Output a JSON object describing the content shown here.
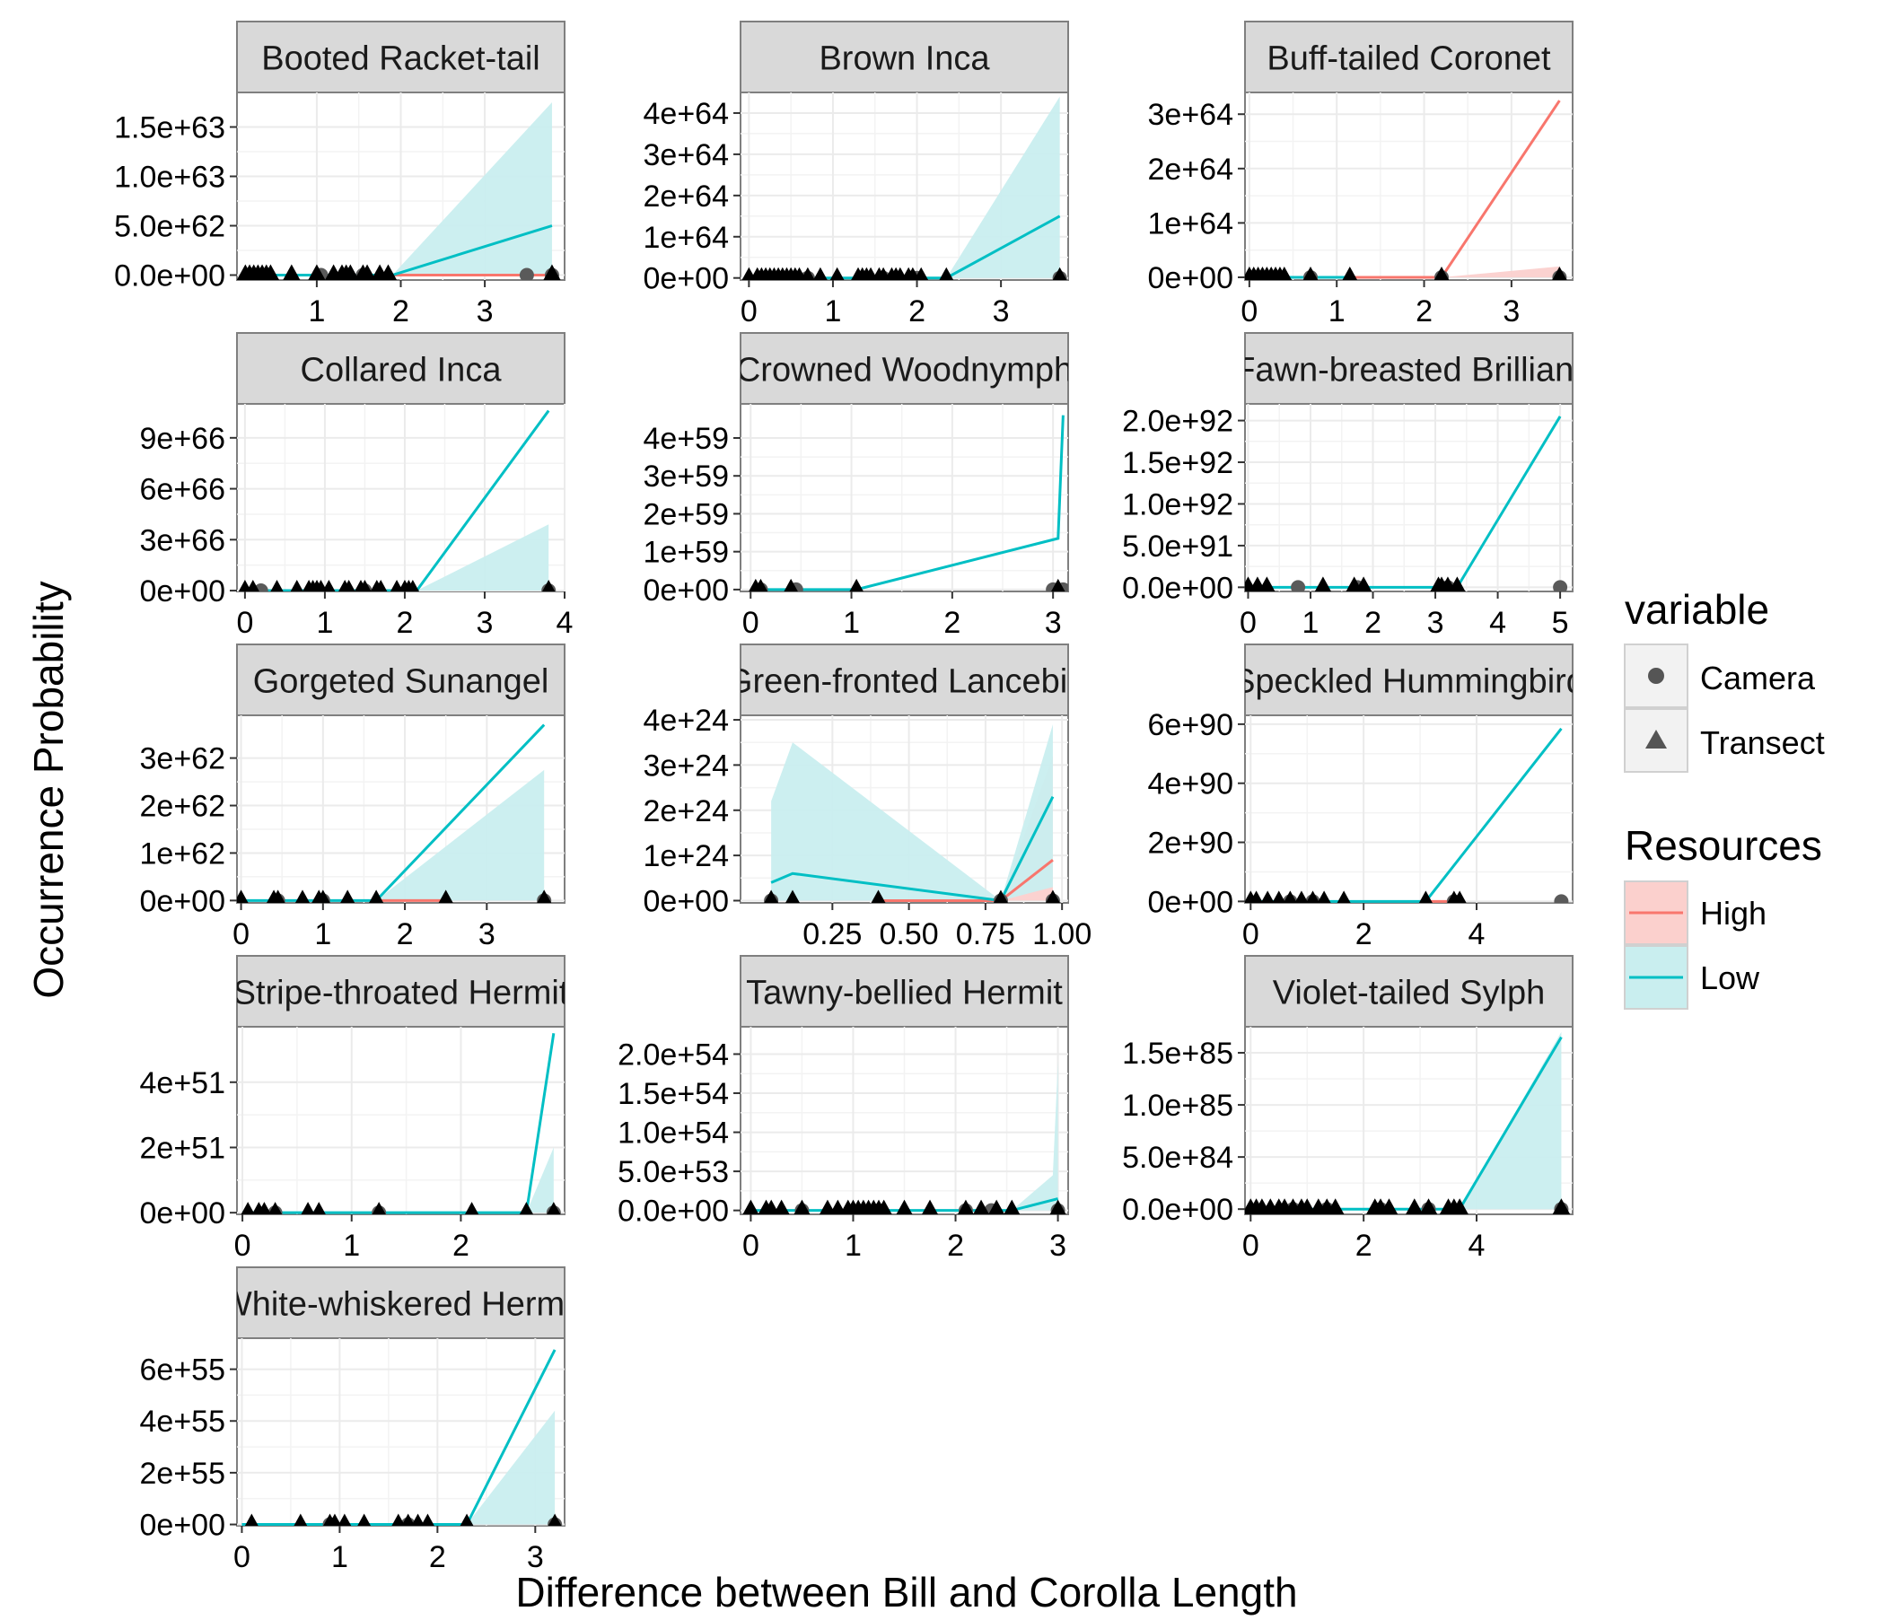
{
  "figure": {
    "xlabel": "Difference between Bill and Corolla Length",
    "ylabel": "Occurrence Probability"
  },
  "legend": {
    "variable_title": "variable",
    "variable_items": [
      {
        "label": "Camera",
        "shape": "circle"
      },
      {
        "label": "Transect",
        "shape": "triangle"
      }
    ],
    "resources_title": "Resources",
    "resources_items": [
      {
        "label": "High",
        "color": "#F8766D",
        "fill": "#FBD0CD"
      },
      {
        "label": "Low",
        "color": "#00BFC4",
        "fill": "#C9EEEF"
      }
    ]
  },
  "chart_data": [
    {
      "type": "line",
      "title": "Booted Racket-tail",
      "xticks": [
        1,
        2,
        3
      ],
      "xlim": [
        0.05,
        3.95
      ],
      "yticks": [
        0,
        5e+62,
        1e+63,
        1.5e+63
      ],
      "ytick_labels": [
        "0.0e+00",
        "5.0e+62",
        "1.0e+63",
        "1.5e+63"
      ],
      "ylim": [
        -5e+61,
        1.85e+63
      ],
      "series": [
        {
          "name": "High",
          "values": [
            [
              1.9,
              0
            ],
            [
              3.8,
              0
            ]
          ],
          "band": []
        },
        {
          "name": "Low",
          "values": [
            [
              0.2,
              0
            ],
            [
              1.9,
              0
            ],
            [
              3.8,
              5e+62
            ]
          ],
          "band": [
            [
              0.2,
              0,
              0
            ],
            [
              1.9,
              0,
              0
            ],
            [
              3.8,
              0,
              1.75e+63
            ]
          ]
        }
      ],
      "points_transect": [
        0.15,
        0.2,
        0.25,
        0.3,
        0.35,
        0.4,
        0.45,
        0.7,
        1.0,
        1.2,
        1.3,
        1.35,
        1.4,
        1.55,
        1.6,
        1.75,
        1.85,
        3.8
      ],
      "points_camera": [
        0.3,
        1.05,
        1.55,
        3.5,
        3.8
      ]
    },
    {
      "type": "line",
      "title": "Brown Inca",
      "xticks": [
        0,
        1,
        2,
        3
      ],
      "xlim": [
        -0.1,
        3.8
      ],
      "yticks": [
        0,
        1e+64,
        2e+64,
        3e+64,
        4e+64
      ],
      "ytick_labels": [
        "0e+00",
        "1e+64",
        "2e+64",
        "3e+64",
        "4e+64"
      ],
      "ylim": [
        -5e+62,
        4.5e+64
      ],
      "series": [
        {
          "name": "Low",
          "values": [
            [
              0,
              0
            ],
            [
              2.35,
              0
            ],
            [
              3.7,
              1.5e+64
            ]
          ],
          "band": [
            [
              0,
              0,
              0
            ],
            [
              2.35,
              0,
              0
            ],
            [
              3.7,
              0,
              4.4e+64
            ]
          ]
        }
      ],
      "points_transect": [
        0,
        0.1,
        0.15,
        0.2,
        0.25,
        0.3,
        0.35,
        0.4,
        0.45,
        0.5,
        0.55,
        0.6,
        0.7,
        0.85,
        1.05,
        1.3,
        1.35,
        1.4,
        1.45,
        1.55,
        1.6,
        1.7,
        1.75,
        1.8,
        1.9,
        1.95,
        2.05,
        2.35,
        3.7
      ],
      "points_camera": [
        0.2,
        0.7,
        1.6,
        2.0,
        3.7
      ]
    },
    {
      "type": "line",
      "title": "Buff-tailed Coronet",
      "xticks": [
        0,
        1,
        2,
        3
      ],
      "xlim": [
        -0.05,
        3.7
      ],
      "yticks": [
        0,
        1e+64,
        2e+64,
        3e+64
      ],
      "ytick_labels": [
        "0e+00",
        "1e+64",
        "2e+64",
        "3e+64"
      ],
      "ylim": [
        -5e+62,
        3.4e+64
      ],
      "series": [
        {
          "name": "High",
          "values": [
            [
              1.2,
              0
            ],
            [
              2.2,
              0
            ],
            [
              3.55,
              3.25e+64
            ]
          ],
          "band": [
            [
              2.2,
              0,
              0
            ],
            [
              3.55,
              0,
              2e+63
            ]
          ]
        },
        {
          "name": "Low",
          "values": [
            [
              0,
              0
            ],
            [
              1.2,
              0
            ]
          ],
          "band": []
        }
      ],
      "points_transect": [
        0,
        0.05,
        0.1,
        0.15,
        0.2,
        0.25,
        0.3,
        0.35,
        0.4,
        0.7,
        1.15,
        2.2,
        3.55
      ],
      "points_camera": [
        0.1,
        0.3,
        0.7,
        2.2,
        3.55
      ]
    },
    {
      "type": "line",
      "title": "Collared Inca",
      "xticks": [
        0,
        1,
        2,
        3,
        4
      ],
      "xlim": [
        -0.1,
        4.0
      ],
      "yticks": [
        0,
        3e+66,
        6e+66,
        9e+66
      ],
      "ytick_labels": [
        "0e+00",
        "3e+66",
        "6e+66",
        "9e+66"
      ],
      "ylim": [
        -5e+64,
        1.1e+67
      ],
      "series": [
        {
          "name": "Low",
          "values": [
            [
              0,
              0
            ],
            [
              2.15,
              0
            ],
            [
              3.8,
              1.06e+67
            ]
          ],
          "band": [
            [
              0,
              0,
              0
            ],
            [
              2.15,
              0,
              0
            ],
            [
              3.8,
              0,
              3.9e+66
            ]
          ]
        }
      ],
      "points_transect": [
        0,
        0.1,
        0.4,
        0.65,
        0.8,
        0.85,
        0.9,
        0.95,
        1.05,
        1.25,
        1.3,
        1.45,
        1.5,
        1.65,
        1.7,
        1.9,
        2.0,
        2.05,
        2.1,
        3.8
      ],
      "points_camera": [
        0.2,
        0.9,
        1.5,
        3.8
      ]
    },
    {
      "type": "line",
      "title": "Crowned Woodnymph",
      "xticks": [
        0,
        1,
        2,
        3
      ],
      "xlim": [
        -0.1,
        3.15
      ],
      "yticks": [
        0,
        1e+59,
        2e+59,
        3e+59,
        4e+59
      ],
      "ytick_labels": [
        "0e+00",
        "1e+59",
        "2e+59",
        "3e+59",
        "4e+59"
      ],
      "ylim": [
        -5e+57,
        4.9e+59
      ],
      "series": [
        {
          "name": "Low",
          "values": [
            [
              0,
              0
            ],
            [
              1.05,
              0
            ],
            [
              3.05,
              1.35e+59
            ],
            [
              3.1,
              4.6e+59
            ]
          ],
          "band": []
        }
      ],
      "points_transect": [
        0.05,
        0.1,
        0.4,
        1.05,
        3.05
      ],
      "points_camera": [
        0.1,
        0.45,
        3.0,
        3.1
      ]
    },
    {
      "type": "line",
      "title": "Fawn-breasted Brilliant",
      "xticks": [
        0,
        1,
        2,
        3,
        4,
        5
      ],
      "xlim": [
        -0.05,
        5.2
      ],
      "yticks": [
        0,
        5e+91,
        1e+92,
        1.5e+92,
        2e+92
      ],
      "ytick_labels": [
        "0.0e+00",
        "5.0e+91",
        "1.0e+92",
        "1.5e+92",
        "2.0e+92"
      ],
      "ylim": [
        -5e+90,
        2.2e+92
      ],
      "series": [
        {
          "name": "Low",
          "values": [
            [
              0,
              0
            ],
            [
              3.35,
              0
            ],
            [
              5.0,
              2.05e+92
            ]
          ],
          "band": []
        }
      ],
      "points_transect": [
        0,
        0.15,
        0.3,
        1.2,
        1.7,
        1.85,
        3.05,
        3.1,
        3.2,
        3.35
      ],
      "points_camera": [
        0.8,
        1.75,
        3.2,
        5.0
      ]
    },
    {
      "type": "line",
      "title": "Gorgeted Sunangel",
      "xticks": [
        0,
        1,
        2,
        3
      ],
      "xlim": [
        -0.05,
        3.95
      ],
      "yticks": [
        0,
        1e+62,
        2e+62,
        3e+62
      ],
      "ytick_labels": [
        "0e+00",
        "1e+62",
        "2e+62",
        "3e+62"
      ],
      "ylim": [
        -5e+60,
        3.9e+62
      ],
      "series": [
        {
          "name": "High",
          "values": [
            [
              1.65,
              0
            ],
            [
              2.5,
              0
            ]
          ],
          "band": []
        },
        {
          "name": "Low",
          "values": [
            [
              0,
              0
            ],
            [
              1.65,
              0
            ],
            [
              3.7,
              3.7e+62
            ]
          ],
          "band": [
            [
              0,
              0,
              0
            ],
            [
              1.65,
              0,
              0
            ],
            [
              3.7,
              0,
              2.75e+62
            ]
          ]
        }
      ],
      "points_transect": [
        0,
        0.4,
        0.45,
        0.75,
        0.95,
        1.0,
        1.3,
        1.65,
        2.5,
        3.7
      ],
      "points_camera": [
        0.45,
        1.0,
        3.7
      ]
    },
    {
      "type": "line",
      "title": "Green-fronted Lancebill",
      "xticks": [
        0.25,
        0.5,
        0.75,
        1.0
      ],
      "xtick_labels": [
        "0.25",
        "0.50",
        "0.75",
        "1.00"
      ],
      "xlim": [
        -0.05,
        1.02
      ],
      "yticks": [
        0,
        1e+24,
        2e+24,
        3e+24,
        4e+24
      ],
      "ytick_labels": [
        "0e+00",
        "1e+24",
        "2e+24",
        "3e+24",
        "4e+24"
      ],
      "ylim": [
        -5e+22,
        4.1e+24
      ],
      "series": [
        {
          "name": "High",
          "values": [
            [
              0.4,
              0
            ],
            [
              0.8,
              0
            ],
            [
              0.97,
              9e+23
            ]
          ],
          "band": [
            [
              0.8,
              0,
              0
            ],
            [
              0.97,
              0,
              3.2e+24
            ]
          ]
        },
        {
          "name": "Low",
          "values": [
            [
              0.05,
              4e+23
            ],
            [
              0.12,
              6e+23
            ],
            [
              0.8,
              0
            ],
            [
              0.97,
              2.3e+24
            ]
          ],
          "band": [
            [
              0.05,
              0,
              2.2e+24
            ],
            [
              0.12,
              0,
              3.5e+24
            ],
            [
              0.8,
              0,
              0
            ],
            [
              0.97,
              3e+23,
              3.9e+24
            ]
          ]
        }
      ],
      "points_transect": [
        0.05,
        0.12,
        0.4,
        0.8,
        0.97
      ],
      "points_camera": [
        0.05,
        0.8,
        0.97
      ]
    },
    {
      "type": "line",
      "title": "Speckled Hummingbird",
      "xticks": [
        0,
        2,
        4
      ],
      "xlim": [
        -0.1,
        5.7
      ],
      "yticks": [
        0,
        2e+90,
        4e+90,
        6e+90
      ],
      "ytick_labels": [
        "0e+00",
        "2e+90",
        "4e+90",
        "6e+90"
      ],
      "ylim": [
        -5e+88,
        6.3e+90
      ],
      "series": [
        {
          "name": "High",
          "values": [
            [
              3.1,
              0
            ],
            [
              3.7,
              0
            ]
          ],
          "band": []
        },
        {
          "name": "Low",
          "values": [
            [
              0,
              0
            ],
            [
              3.1,
              0
            ],
            [
              5.5,
              5.85e+90
            ]
          ],
          "band": []
        }
      ],
      "points_transect": [
        0,
        0.1,
        0.3,
        0.5,
        0.7,
        0.9,
        1.1,
        1.3,
        1.65,
        3.1,
        3.6,
        3.7
      ],
      "points_camera": [
        0.7,
        1.1,
        3.6,
        5.5
      ]
    },
    {
      "type": "line",
      "title": "Stripe-throated Hermit",
      "xticks": [
        0,
        1,
        2
      ],
      "xlim": [
        -0.05,
        2.95
      ],
      "yticks": [
        0,
        2e+51,
        4e+51
      ],
      "ytick_labels": [
        "0e+00",
        "2e+51",
        "4e+51"
      ],
      "ylim": [
        -5e+49,
        5.7e+51
      ],
      "series": [
        {
          "name": "Low",
          "values": [
            [
              0,
              0
            ],
            [
              2.6,
              0
            ],
            [
              2.85,
              5.5e+51
            ]
          ],
          "band": [
            [
              0,
              0,
              0
            ],
            [
              2.6,
              0,
              0
            ],
            [
              2.85,
              0,
              2e+51
            ]
          ]
        }
      ],
      "points_transect": [
        0.05,
        0.15,
        0.2,
        0.3,
        0.6,
        0.7,
        1.25,
        2.1,
        2.6,
        2.85
      ],
      "points_camera": [
        0.3,
        1.25,
        2.85
      ]
    },
    {
      "type": "line",
      "title": "Tawny-bellied Hermit",
      "xticks": [
        0,
        1,
        2,
        3
      ],
      "xlim": [
        -0.1,
        3.1
      ],
      "yticks": [
        0,
        5e+53,
        1e+54,
        1.5e+54,
        2e+54
      ],
      "ytick_labels": [
        "0.0e+00",
        "5.0e+53",
        "1.0e+54",
        "1.5e+54",
        "2.0e+54"
      ],
      "ylim": [
        -5e+52,
        2.35e+54
      ],
      "series": [
        {
          "name": "Low",
          "values": [
            [
              0,
              0
            ],
            [
              2.55,
              0
            ],
            [
              3.0,
              1.5e+53
            ]
          ],
          "band": [
            [
              2.55,
              0,
              0
            ],
            [
              2.95,
              0,
              4.5e+53
            ],
            [
              3.0,
              0,
              1.9e+54
            ]
          ]
        }
      ],
      "points_transect": [
        0,
        0.15,
        0.2,
        0.3,
        0.5,
        0.75,
        0.85,
        0.95,
        1.0,
        1.05,
        1.1,
        1.15,
        1.2,
        1.25,
        1.3,
        1.5,
        1.75,
        2.1,
        2.25,
        2.4,
        2.55,
        3.0
      ],
      "points_camera": [
        0.5,
        1.25,
        2.1,
        2.35,
        3.0
      ]
    },
    {
      "type": "line",
      "title": "Violet-tailed Sylph",
      "xticks": [
        0,
        2,
        4
      ],
      "xlim": [
        -0.1,
        5.7
      ],
      "yticks": [
        0,
        5e+84,
        1e+85,
        1.5e+85
      ],
      "ytick_labels": [
        "0.0e+00",
        "5.0e+84",
        "1.0e+85",
        "1.5e+85"
      ],
      "ylim": [
        -5e+83,
        1.75e+85
      ],
      "series": [
        {
          "name": "Low",
          "values": [
            [
              0,
              0
            ],
            [
              3.7,
              0
            ],
            [
              5.5,
              1.65e+85
            ]
          ],
          "band": [
            [
              0,
              0,
              0
            ],
            [
              3.7,
              0,
              0
            ],
            [
              5.5,
              0,
              1.7e+85
            ]
          ]
        }
      ],
      "points_transect": [
        0,
        0.1,
        0.2,
        0.35,
        0.5,
        0.6,
        0.75,
        0.9,
        1.0,
        1.2,
        1.35,
        1.5,
        2.2,
        2.3,
        2.45,
        2.9,
        3.15,
        3.5,
        3.6,
        3.7,
        5.5
      ],
      "points_camera": [
        0.75,
        1.35,
        2.3,
        3.15,
        5.5
      ]
    },
    {
      "type": "line",
      "title": "White-whiskered Hermit",
      "xticks": [
        0,
        1,
        2,
        3
      ],
      "xlim": [
        -0.05,
        3.3
      ],
      "yticks": [
        0,
        2e+55,
        4e+55,
        6e+55
      ],
      "ytick_labels": [
        "0e+00",
        "2e+55",
        "4e+55",
        "6e+55"
      ],
      "ylim": [
        -5e+53,
        7.2e+55
      ],
      "series": [
        {
          "name": "Low",
          "values": [
            [
              0,
              0
            ],
            [
              2.3,
              0
            ],
            [
              3.2,
              6.75e+55
            ]
          ],
          "band": [
            [
              0,
              0,
              0
            ],
            [
              2.3,
              0,
              0
            ],
            [
              3.2,
              0,
              4.4e+55
            ]
          ]
        }
      ],
      "points_transect": [
        0.1,
        0.6,
        0.9,
        0.95,
        1.05,
        1.25,
        1.6,
        1.7,
        1.8,
        1.9,
        2.3,
        3.2
      ],
      "points_camera": [
        0.9,
        1.7,
        3.2
      ]
    }
  ]
}
